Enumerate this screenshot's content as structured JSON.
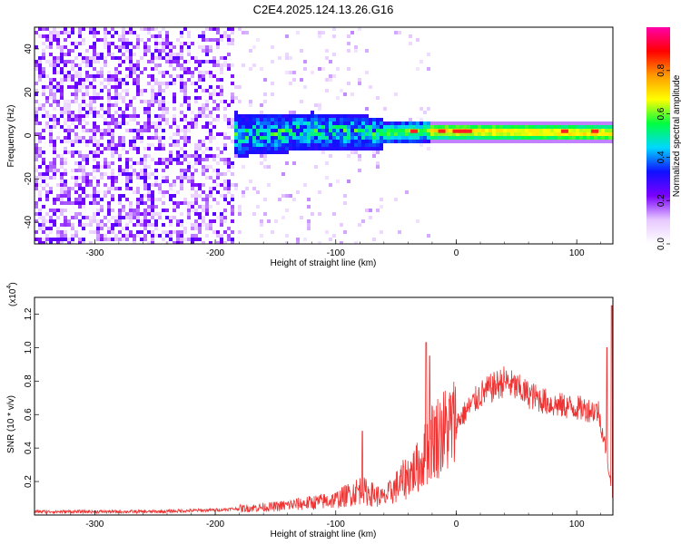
{
  "title": "C2E4.2025.124.13.26.G16",
  "chart_data": [
    {
      "type": "heatmap",
      "xlabel": "Height of straight line (km)",
      "ylabel": "Frequency (Hz)",
      "xlim": [
        -350,
        130
      ],
      "ylim": [
        -50,
        50
      ],
      "xticks": [
        -300,
        -200,
        -100,
        0,
        100
      ],
      "yticks": [
        -40,
        -20,
        0,
        20,
        40
      ],
      "colorbar": {
        "label": "Normalized spectral amplitude",
        "range": [
          0,
          1
        ],
        "ticks": [
          "0.0",
          "0.2",
          "0.4",
          "0.6",
          "0.8"
        ],
        "colors": [
          "#ffffff",
          "#e6c8ff",
          "#7a00ff",
          "#1010ff",
          "#00d8ff",
          "#00ff40",
          "#ffff00",
          "#ff9900",
          "#ff0000",
          "#ff00aa"
        ]
      },
      "ridge": {
        "description_points": [
          {
            "x": -180,
            "y": 0
          },
          {
            "x": -120,
            "y": 2
          },
          {
            "x": -60,
            "y": 1
          },
          {
            "x": -30,
            "y": 2
          },
          {
            "x": 0,
            "y": 2
          },
          {
            "x": 130,
            "y": 1
          }
        ]
      }
    },
    {
      "type": "line",
      "xlabel": "Height of straight line (km)",
      "ylabel": "SNR (10 * v/v)",
      "yscale_label": "(x10",
      "yscale_exp": "4",
      "xlim": [
        -350,
        130
      ],
      "ylim": [
        0,
        1.3
      ],
      "xticks": [
        -300,
        -200,
        -100,
        0,
        100
      ],
      "yticks": [
        0.2,
        0.4,
        0.6,
        0.8,
        1.0,
        1.2
      ],
      "color": "#ee3333",
      "envelope": [
        {
          "x": -350,
          "y": 0.02
        },
        {
          "x": -250,
          "y": 0.02
        },
        {
          "x": -200,
          "y": 0.03
        },
        {
          "x": -150,
          "y": 0.05
        },
        {
          "x": -100,
          "y": 0.09
        },
        {
          "x": -80,
          "y": 0.15
        },
        {
          "x": -60,
          "y": 0.1
        },
        {
          "x": -45,
          "y": 0.2
        },
        {
          "x": -30,
          "y": 0.3
        },
        {
          "x": -20,
          "y": 0.45
        },
        {
          "x": 0,
          "y": 0.55
        },
        {
          "x": 20,
          "y": 0.72
        },
        {
          "x": 40,
          "y": 0.8
        },
        {
          "x": 60,
          "y": 0.72
        },
        {
          "x": 80,
          "y": 0.66
        },
        {
          "x": 100,
          "y": 0.64
        },
        {
          "x": 118,
          "y": 0.62
        },
        {
          "x": 124,
          "y": 0.4
        },
        {
          "x": 130,
          "y": 0.1
        }
      ],
      "spikes": [
        {
          "x": -78,
          "y": 0.5
        },
        {
          "x": -25,
          "y": 1.03
        },
        {
          "x": -22,
          "y": 0.95
        },
        {
          "x": 125,
          "y": 1.0
        },
        {
          "x": 129,
          "y": 1.25
        }
      ]
    }
  ]
}
